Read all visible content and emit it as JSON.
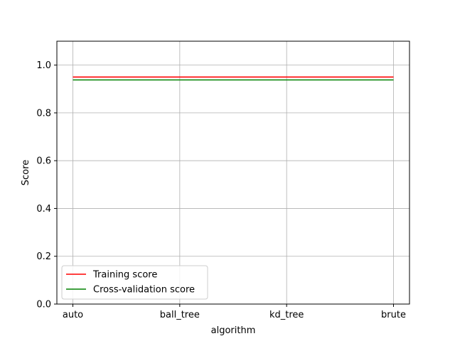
{
  "chart_data": {
    "type": "line",
    "categories": [
      "auto",
      "ball_tree",
      "kd_tree",
      "brute"
    ],
    "series": [
      {
        "name": "Training score",
        "values": [
          0.95,
          0.95,
          0.95,
          0.95
        ],
        "color": "#ff0000"
      },
      {
        "name": "Cross-validation score",
        "values": [
          0.938,
          0.938,
          0.938,
          0.938
        ],
        "color": "#008000"
      }
    ],
    "xlabel": "algorithm",
    "ylabel": "Score",
    "ylim": [
      0.0,
      1.1
    ],
    "yticks": [
      0.0,
      0.2,
      0.4,
      0.6,
      0.8,
      1.0
    ],
    "ytick_labels": [
      "0.0",
      "0.2",
      "0.4",
      "0.6",
      "0.8",
      "1.0"
    ],
    "grid": true,
    "legend": "lower-left"
  }
}
